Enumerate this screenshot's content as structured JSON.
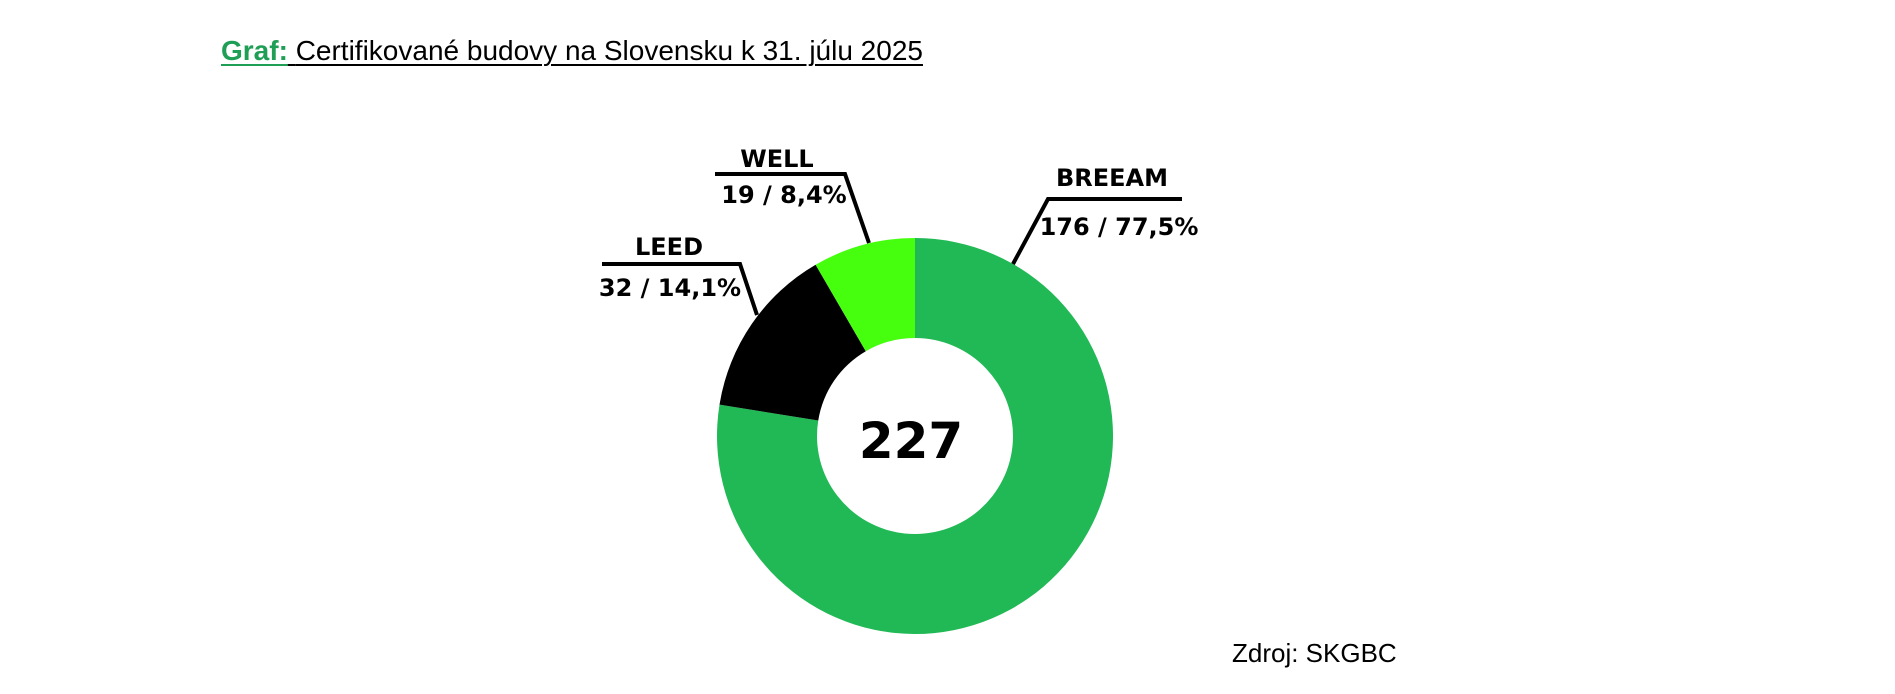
{
  "title": {
    "prefix": "Graf:",
    "text": "Certifikované budovy na Slovensku k 31. júlu 2025"
  },
  "source": "Zdroj: SKGBC",
  "chart_data": {
    "type": "pie",
    "style": "donut",
    "title": "Certifikované budovy na Slovensku k 31. júlu 2025",
    "total": "227",
    "slices": [
      {
        "name": "BREEAM",
        "value": 176,
        "label": "176 / 77,5%",
        "color": "#21b955"
      },
      {
        "name": "LEED",
        "value": 32,
        "label": "32 / 14,1%",
        "color": "#000000"
      },
      {
        "name": "WELL",
        "value": 19,
        "label": "19 / 8,4%",
        "color": "#46ff0f"
      }
    ],
    "legend": "none"
  }
}
